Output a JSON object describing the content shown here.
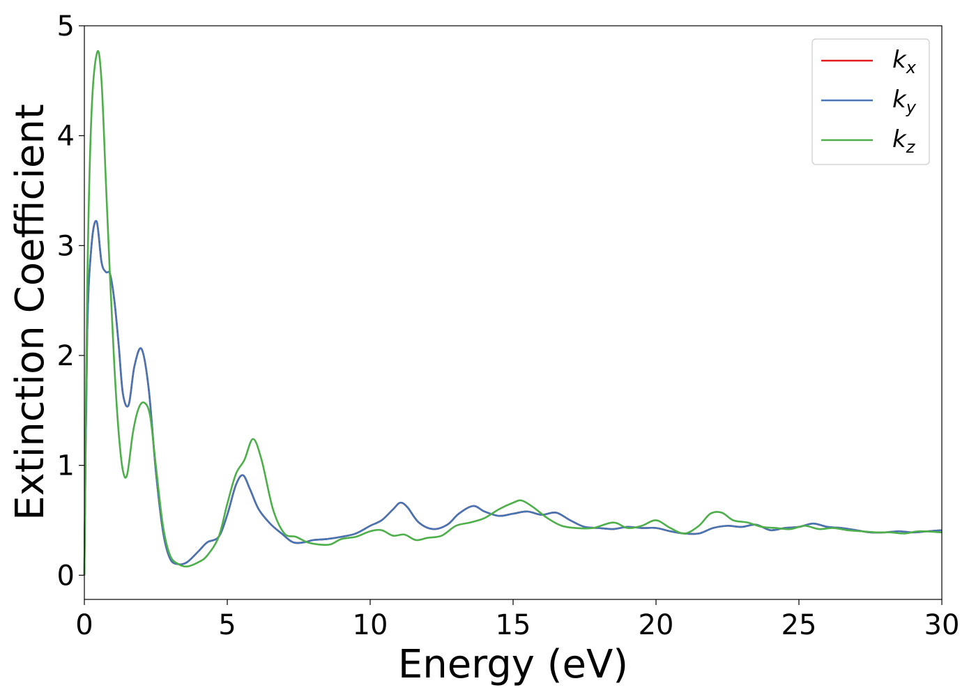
{
  "chart_data": {
    "type": "line",
    "xlabel": "Energy (eV)",
    "ylabel": "Extinction Coefficient",
    "xlim": [
      0,
      30
    ],
    "ylim": [
      -0.22,
      5
    ],
    "xticks": [
      0,
      5,
      10,
      15,
      20,
      25,
      30
    ],
    "yticks": [
      0,
      1,
      2,
      3,
      4,
      5
    ],
    "grid": false,
    "legend_position": "top-right",
    "series": [
      {
        "name": "k_x",
        "base": "k",
        "sub": "x",
        "color": "#e41a1c",
        "x": [
          0,
          0.1,
          0.25,
          0.43,
          0.6,
          0.75,
          0.9,
          1.05,
          1.2,
          1.35,
          1.55,
          1.75,
          2.0,
          2.25,
          2.5,
          2.75,
          3.0,
          3.3,
          3.6,
          4.0,
          4.3,
          4.7,
          5.0,
          5.3,
          5.55,
          5.8,
          6.1,
          6.5,
          6.9,
          7.3,
          7.7,
          8.0,
          8.5,
          9.0,
          9.5,
          10.0,
          10.4,
          10.8,
          11.05,
          11.3,
          11.7,
          12.2,
          12.7,
          13.1,
          13.6,
          14.0,
          14.5,
          15.0,
          15.5,
          16.0,
          16.5,
          17.0,
          17.5,
          18.0,
          18.5,
          19.0,
          19.5,
          20.0,
          20.5,
          21.0,
          21.5,
          22.0,
          22.5,
          23.0,
          23.5,
          24.0,
          24.5,
          25.0,
          25.5,
          26.0,
          26.5,
          27.0,
          27.5,
          28.0,
          28.5,
          29.0,
          29.5,
          30.0
        ],
        "y": [
          0.0,
          2.2,
          3.0,
          3.22,
          2.85,
          2.76,
          2.74,
          2.5,
          2.1,
          1.65,
          1.55,
          1.9,
          2.06,
          1.7,
          0.95,
          0.4,
          0.15,
          0.1,
          0.12,
          0.22,
          0.3,
          0.35,
          0.55,
          0.82,
          0.91,
          0.78,
          0.6,
          0.47,
          0.38,
          0.3,
          0.3,
          0.32,
          0.33,
          0.35,
          0.38,
          0.45,
          0.5,
          0.6,
          0.66,
          0.62,
          0.48,
          0.42,
          0.46,
          0.56,
          0.63,
          0.58,
          0.54,
          0.56,
          0.58,
          0.55,
          0.57,
          0.5,
          0.44,
          0.43,
          0.42,
          0.44,
          0.43,
          0.43,
          0.4,
          0.38,
          0.38,
          0.43,
          0.45,
          0.44,
          0.46,
          0.41,
          0.43,
          0.44,
          0.47,
          0.44,
          0.43,
          0.41,
          0.39,
          0.39,
          0.4,
          0.39,
          0.4,
          0.41
        ]
      },
      {
        "name": "k_y",
        "base": "k",
        "sub": "y",
        "color": "#4575b4",
        "x": [
          0,
          0.1,
          0.25,
          0.43,
          0.6,
          0.75,
          0.9,
          1.05,
          1.2,
          1.35,
          1.55,
          1.75,
          2.0,
          2.25,
          2.5,
          2.75,
          3.0,
          3.3,
          3.6,
          4.0,
          4.3,
          4.7,
          5.0,
          5.3,
          5.55,
          5.8,
          6.1,
          6.5,
          6.9,
          7.3,
          7.7,
          8.0,
          8.5,
          9.0,
          9.5,
          10.0,
          10.4,
          10.8,
          11.05,
          11.3,
          11.7,
          12.2,
          12.7,
          13.1,
          13.6,
          14.0,
          14.5,
          15.0,
          15.5,
          16.0,
          16.5,
          17.0,
          17.5,
          18.0,
          18.5,
          19.0,
          19.5,
          20.0,
          20.5,
          21.0,
          21.5,
          22.0,
          22.5,
          23.0,
          23.5,
          24.0,
          24.5,
          25.0,
          25.5,
          26.0,
          26.5,
          27.0,
          27.5,
          28.0,
          28.5,
          29.0,
          29.5,
          30.0
        ],
        "y": [
          0.0,
          2.2,
          3.0,
          3.22,
          2.85,
          2.76,
          2.74,
          2.5,
          2.1,
          1.65,
          1.55,
          1.9,
          2.06,
          1.7,
          0.95,
          0.4,
          0.15,
          0.1,
          0.12,
          0.22,
          0.3,
          0.35,
          0.55,
          0.82,
          0.91,
          0.78,
          0.6,
          0.47,
          0.38,
          0.3,
          0.3,
          0.32,
          0.33,
          0.35,
          0.38,
          0.45,
          0.5,
          0.6,
          0.66,
          0.62,
          0.48,
          0.42,
          0.46,
          0.56,
          0.63,
          0.58,
          0.54,
          0.56,
          0.58,
          0.55,
          0.57,
          0.5,
          0.44,
          0.43,
          0.42,
          0.44,
          0.43,
          0.43,
          0.4,
          0.38,
          0.38,
          0.43,
          0.45,
          0.44,
          0.46,
          0.41,
          0.43,
          0.44,
          0.47,
          0.44,
          0.43,
          0.41,
          0.39,
          0.39,
          0.4,
          0.39,
          0.4,
          0.41
        ]
      },
      {
        "name": "k_z",
        "base": "k",
        "sub": "z",
        "color": "#4daf4a",
        "x": [
          0,
          0.1,
          0.25,
          0.45,
          0.6,
          0.75,
          0.9,
          1.05,
          1.2,
          1.35,
          1.5,
          1.7,
          1.9,
          2.1,
          2.3,
          2.5,
          2.75,
          3.0,
          3.3,
          3.6,
          4.0,
          4.3,
          4.7,
          5.0,
          5.3,
          5.6,
          5.9,
          6.2,
          6.6,
          7.0,
          7.4,
          7.8,
          8.2,
          8.6,
          9.0,
          9.5,
          10.0,
          10.4,
          10.8,
          11.2,
          11.6,
          12.0,
          12.5,
          13.0,
          13.5,
          14.0,
          14.5,
          15.0,
          15.3,
          15.7,
          16.2,
          16.7,
          17.2,
          17.8,
          18.5,
          19.0,
          19.5,
          20.0,
          20.5,
          21.0,
          21.5,
          21.9,
          22.3,
          22.7,
          23.2,
          23.7,
          24.2,
          24.7,
          25.2,
          25.7,
          26.2,
          26.7,
          27.2,
          27.7,
          28.2,
          28.7,
          29.2,
          30.0
        ],
        "y": [
          0.0,
          2.6,
          4.2,
          4.76,
          4.5,
          3.6,
          2.7,
          1.9,
          1.3,
          0.95,
          0.92,
          1.3,
          1.52,
          1.57,
          1.45,
          1.0,
          0.45,
          0.18,
          0.1,
          0.08,
          0.12,
          0.18,
          0.35,
          0.65,
          0.92,
          1.05,
          1.24,
          1.05,
          0.6,
          0.38,
          0.35,
          0.3,
          0.28,
          0.28,
          0.33,
          0.35,
          0.4,
          0.41,
          0.36,
          0.37,
          0.32,
          0.34,
          0.36,
          0.45,
          0.48,
          0.52,
          0.6,
          0.66,
          0.68,
          0.62,
          0.52,
          0.45,
          0.43,
          0.43,
          0.48,
          0.43,
          0.45,
          0.5,
          0.43,
          0.38,
          0.45,
          0.56,
          0.57,
          0.5,
          0.48,
          0.44,
          0.43,
          0.42,
          0.45,
          0.42,
          0.43,
          0.41,
          0.4,
          0.39,
          0.39,
          0.38,
          0.4,
          0.39
        ]
      }
    ]
  }
}
